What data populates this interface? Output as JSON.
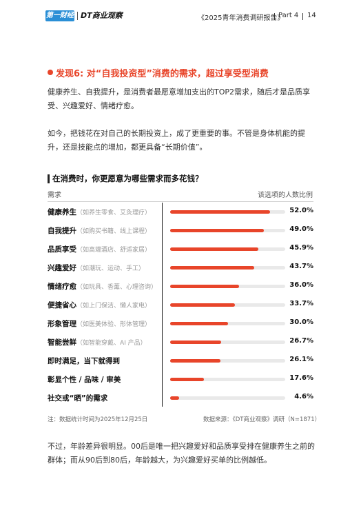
{
  "header": {
    "logo_cbn": "第一财经",
    "logo_dt": "DT商业观察",
    "report_title": "《2025青年消费调研报告》",
    "part": "Part 4",
    "page": "14"
  },
  "finding": {
    "title": "发现6: 对“自我投资型”消费的需求，超过享受型消费"
  },
  "paragraphs": {
    "p1": "健康养生、自我提升，是消费者最愿意增加支出的TOP2需求，随后才是品质享受、兴趣爱好、情绪疗愈。",
    "p2": "如今，把钱花在对自己的长期投资上，成了更重要的事。不管是身体机能的提升，还是技能点的增加，都更具备“长期价值”。",
    "p3": "不过，年龄差异很明显。00后是唯一把兴趣爱好和品质享受排在健康养生之前的群体；而从90后到80后，年龄越大，为兴趣爱好买单的比例越低。"
  },
  "colors": {
    "accent": "#e8452a",
    "track": "#e9e9e9"
  },
  "chart_data": {
    "type": "bar",
    "orientation": "horizontal",
    "title": "在消费时，你更愿意为哪些需求而多花钱？",
    "category_header": "需求",
    "value_header": "该选项的人数比例",
    "unit": "%",
    "xlim": [
      0,
      60
    ],
    "grid": false,
    "rows": [
      {
        "name": "健康养生",
        "note": "（如养生零食、艾灸理疗）",
        "value": 52.0,
        "label": "52.0%"
      },
      {
        "name": "自我提升",
        "note": "（如购买书籍、线上课程）",
        "value": 49.0,
        "label": "49.0%"
      },
      {
        "name": "品质享受",
        "note": "（如高端酒店、舒适家居）",
        "value": 45.9,
        "label": "45.9%"
      },
      {
        "name": "兴趣爱好",
        "note": "（如潮玩、运动、手工）",
        "value": 43.7,
        "label": "43.7%"
      },
      {
        "name": "情绪疗愈",
        "note": "（如玩具、香薰、心理咨询）",
        "value": 36.0,
        "label": "36.0%"
      },
      {
        "name": "便捷省心",
        "note": "（如上门保洁、懒人家电）",
        "value": 33.7,
        "label": "33.7%"
      },
      {
        "name": "形象管理",
        "note": "（如医美体验、形体管理）",
        "value": 30.0,
        "label": "30.0%"
      },
      {
        "name": "智能尝鲜",
        "note": "（如智能穿戴、AI 产品）",
        "value": 26.7,
        "label": "26.7%"
      },
      {
        "name": "即时满足，当下就得到",
        "note": "",
        "value": 26.1,
        "label": "26.1%"
      },
      {
        "name": "彰显个性 / 品味 / 审美",
        "note": "",
        "value": 17.6,
        "label": "17.6%"
      },
      {
        "name": "社交或“晒”的需求",
        "note": "",
        "value": 4.6,
        "label": "4.6%"
      }
    ],
    "footnote": "注：数据统计时间为2025年12月25日",
    "source": "数据来源：《DT商业观察》调研（N=1871）"
  }
}
